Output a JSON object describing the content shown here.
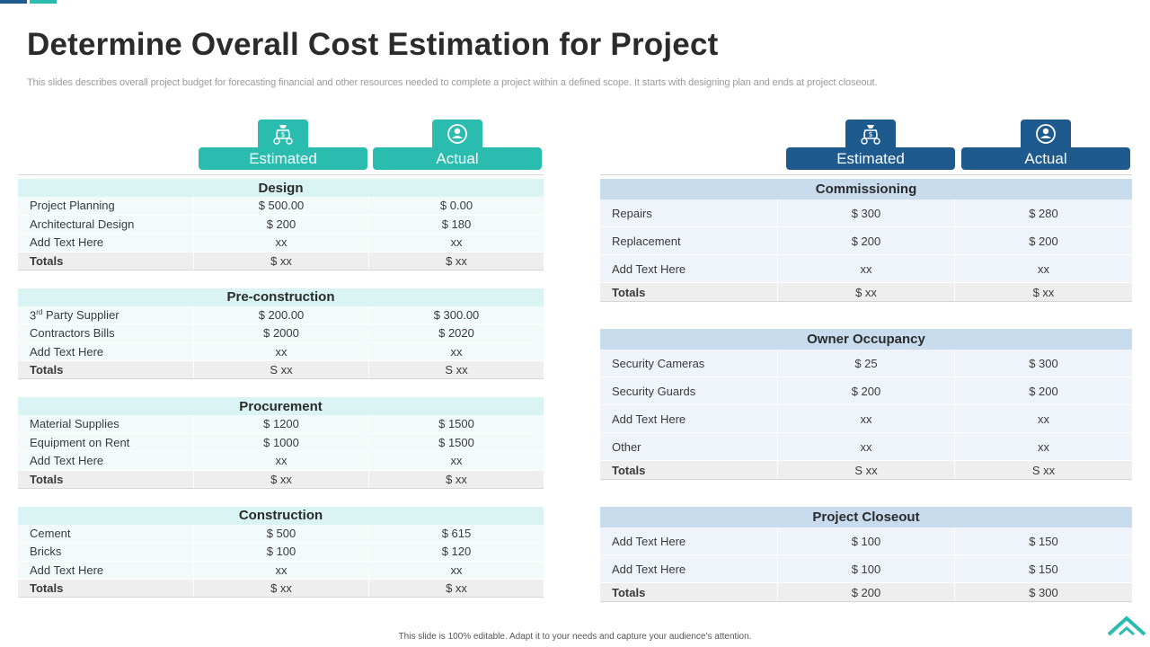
{
  "title": "Determine Overall Cost Estimation for Project",
  "subtitle": "This slides describes overall project budget for forecasting financial and other resources needed to complete a project within a defined scope. It starts with designing plan and ends at project closeout.",
  "footer": "This slide is 100% editable.  Adapt it to your needs and capture your audience’s attention.",
  "colors": {
    "teal": "#2bbcb0",
    "blue": "#1f5a8f",
    "teal_light": "#d9f4f2",
    "blue_light": "#c8dcee"
  },
  "icons": {
    "estimated": "money-bag-icon",
    "actual": "user-circle-icon",
    "logo": "chevron-up-logo-icon"
  },
  "left": {
    "estimated_label": "Estimated",
    "actual_label": "Actual",
    "sections": [
      {
        "title": "Design",
        "rows": [
          {
            "label": "Project Planning",
            "estimated": "$ 500.00",
            "actual": "$ 0.00"
          },
          {
            "label": "Architectural Design",
            "estimated": "$ 200",
            "actual": "$ 180"
          },
          {
            "label": "Add Text Here",
            "estimated": "xx",
            "actual": "xx"
          }
        ],
        "total": {
          "label": "Totals",
          "estimated": "$ xx",
          "actual": "$ xx"
        }
      },
      {
        "title": "Pre-construction",
        "rows": [
          {
            "label": "3rd Party Supplier",
            "estimated": "$ 200.00",
            "actual": "$ 300.00"
          },
          {
            "label": "Contractors Bills",
            "estimated": "$ 2000",
            "actual": "$ 2020"
          },
          {
            "label": "Add Text Here",
            "estimated": "xx",
            "actual": "xx"
          }
        ],
        "total": {
          "label": "Totals",
          "estimated": "S xx",
          "actual": "S xx"
        }
      },
      {
        "title": "Procurement",
        "rows": [
          {
            "label": "Material Supplies",
            "estimated": "$ 1200",
            "actual": "$ 1500"
          },
          {
            "label": "Equipment on Rent",
            "estimated": "$ 1000",
            "actual": "$ 1500"
          },
          {
            "label": "Add Text Here",
            "estimated": "xx",
            "actual": "xx"
          }
        ],
        "total": {
          "label": "Totals",
          "estimated": "$ xx",
          "actual": "$ xx"
        }
      },
      {
        "title": "Construction",
        "rows": [
          {
            "label": "Cement",
            "estimated": "$ 500",
            "actual": "$ 615"
          },
          {
            "label": "Bricks",
            "estimated": "$ 100",
            "actual": "$ 120"
          },
          {
            "label": "Add Text Here",
            "estimated": "xx",
            "actual": "xx"
          }
        ],
        "total": {
          "label": "Totals",
          "estimated": "$ xx",
          "actual": "$ xx"
        }
      }
    ]
  },
  "right": {
    "estimated_label": "Estimated",
    "actual_label": "Actual",
    "sections": [
      {
        "title": "Commissioning",
        "rows": [
          {
            "label": "Repairs",
            "estimated": "$ 300",
            "actual": "$ 280"
          },
          {
            "label": "Replacement",
            "estimated": "$ 200",
            "actual": "$ 200"
          },
          {
            "label": "Add Text Here",
            "estimated": "xx",
            "actual": "xx"
          }
        ],
        "total": {
          "label": "Totals",
          "estimated": "$ xx",
          "actual": "$ xx"
        }
      },
      {
        "title": "Owner Occupancy",
        "rows": [
          {
            "label": "Security Cameras",
            "estimated": "$ 25",
            "actual": "$ 300"
          },
          {
            "label": "Security Guards",
            "estimated": "$ 200",
            "actual": "$ 200"
          },
          {
            "label": "Add Text Here",
            "estimated": "xx",
            "actual": "xx"
          },
          {
            "label": "Other",
            "estimated": "xx",
            "actual": "xx"
          }
        ],
        "total": {
          "label": "Totals",
          "estimated": "S xx",
          "actual": "S xx"
        }
      },
      {
        "title": "Project Closeout",
        "rows": [
          {
            "label": "Add Text Here",
            "estimated": "$ 100",
            "actual": "$ 150"
          },
          {
            "label": "Add Text Here",
            "estimated": "$ 100",
            "actual": "$ 150"
          }
        ],
        "total": {
          "label": "Totals",
          "estimated": "$ 200",
          "actual": "$ 300"
        }
      }
    ]
  }
}
